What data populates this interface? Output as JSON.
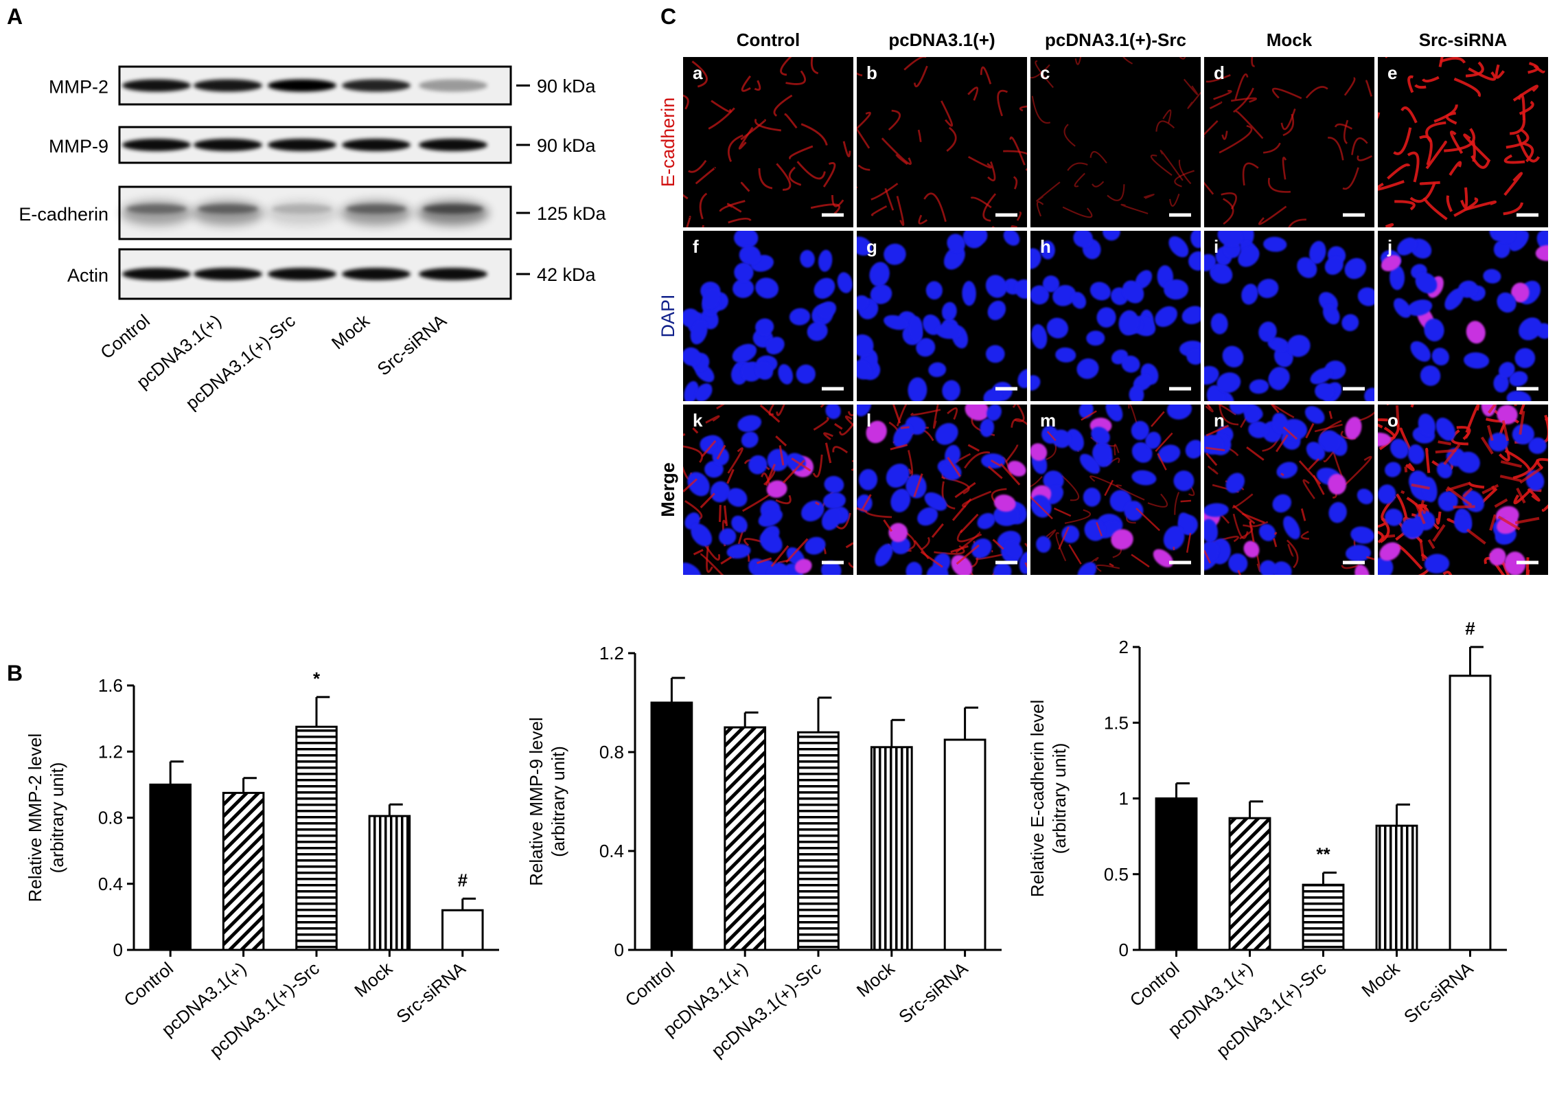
{
  "panels": {
    "a": "A",
    "b": "B",
    "c": "C"
  },
  "conditions": [
    "Control",
    "pcDNA3.1(+)",
    "pcDNA3.1(+)-Src",
    "Mock",
    "Src-siRNA"
  ],
  "western_blot": {
    "rows": [
      {
        "protein": "MMP-2",
        "size": "90 kDa"
      },
      {
        "protein": "MMP-9",
        "size": "90 kDa"
      },
      {
        "protein": "E-cadherin",
        "size": "125 kDa"
      },
      {
        "protein": "Actin",
        "size": "42 kDa"
      }
    ]
  },
  "micrographs": {
    "rows": [
      {
        "label": "E-cadherin",
        "color": "#d01010",
        "cells": [
          "a",
          "b",
          "c",
          "d",
          "e"
        ]
      },
      {
        "label": "DAPI",
        "color": "#10208a",
        "cells": [
          "f",
          "g",
          "h",
          "i",
          "j"
        ]
      },
      {
        "label": "Merge",
        "color": "#000000",
        "cells": [
          "k",
          "l",
          "m",
          "n",
          "o"
        ]
      }
    ]
  },
  "chart_data": [
    {
      "type": "bar",
      "categories": [
        "Control",
        "pcDNA3.1(+)",
        "pcDNA3.1(+)-Src",
        "Mock",
        "Src-siRNA"
      ],
      "values": [
        1.0,
        0.95,
        1.35,
        0.81,
        0.24
      ],
      "errors": [
        0.14,
        0.09,
        0.18,
        0.07,
        0.07
      ],
      "annotations": [
        "",
        "",
        "*",
        "",
        "#"
      ],
      "patterns": [
        "solid",
        "diagonal",
        "horizontal",
        "vertical",
        "empty"
      ],
      "ylabel": "Relative MMP-2 level",
      "ylabel2": "(arbitrary unit)",
      "ylim": [
        0,
        1.6
      ],
      "yticks": [
        "0",
        "0.4",
        "0.8",
        "1.2",
        "1.6"
      ]
    },
    {
      "type": "bar",
      "categories": [
        "Control",
        "pcDNA3.1(+)",
        "pcDNA3.1(+)-Src",
        "Mock",
        "Src-siRNA"
      ],
      "values": [
        1.0,
        0.9,
        0.88,
        0.82,
        0.85
      ],
      "errors": [
        0.1,
        0.06,
        0.14,
        0.11,
        0.13
      ],
      "annotations": [
        "",
        "",
        "",
        "",
        ""
      ],
      "patterns": [
        "solid",
        "diagonal",
        "horizontal",
        "vertical",
        "empty"
      ],
      "ylabel": "Relative MMP-9 level",
      "ylabel2": "(arbitrary unit)",
      "ylim": [
        0,
        1.2
      ],
      "yticks": [
        "0",
        "0.4",
        "0.8",
        "1.2"
      ]
    },
    {
      "type": "bar",
      "categories": [
        "Control",
        "pcDNA3.1(+)",
        "pcDNA3.1(+)-Src",
        "Mock",
        "Src-siRNA"
      ],
      "values": [
        1.0,
        0.87,
        0.43,
        0.82,
        1.81
      ],
      "errors": [
        0.1,
        0.11,
        0.08,
        0.14,
        0.19
      ],
      "annotations": [
        "",
        "",
        "**",
        "",
        "#"
      ],
      "patterns": [
        "solid",
        "diagonal",
        "horizontal",
        "vertical",
        "empty"
      ],
      "ylabel": "Relative E-cadherin level",
      "ylabel2": "(arbitrary unit)",
      "ylim": [
        0,
        2
      ],
      "yticks": [
        "0",
        "0.5",
        "1",
        "1.5",
        "2"
      ]
    }
  ]
}
